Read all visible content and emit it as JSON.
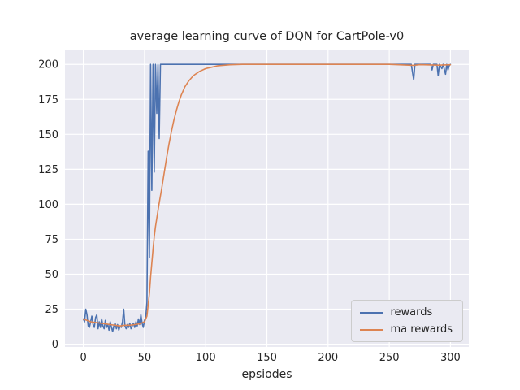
{
  "title": "average learning curve of DQN for CartPole-v0",
  "colors": {
    "figure_bg": "#ffffff",
    "axes_bg": "#eaeaf2",
    "grid": "#ffffff",
    "text": "#262626",
    "rewards_line": "#4c72b0",
    "ma_line": "#dd8452"
  },
  "chart_data": {
    "type": "line",
    "title": "average learning curve of DQN for CartPole-v0",
    "xlabel": "epsiodes",
    "ylabel": "",
    "xlim": [
      -15,
      315
    ],
    "ylim": [
      -2,
      210
    ],
    "x_ticks": [
      0,
      50,
      100,
      150,
      200,
      250,
      300
    ],
    "y_ticks": [
      0,
      25,
      50,
      75,
      100,
      125,
      150,
      175,
      200
    ],
    "grid": true,
    "legend_position": "lower right",
    "series": [
      {
        "name": "rewards",
        "color": "#4c72b0",
        "points": [
          [
            0,
            18
          ],
          [
            1,
            16
          ],
          [
            2,
            25
          ],
          [
            3,
            21
          ],
          [
            4,
            13
          ],
          [
            5,
            12
          ],
          [
            6,
            16
          ],
          [
            7,
            20
          ],
          [
            8,
            14
          ],
          [
            9,
            12
          ],
          [
            10,
            19
          ],
          [
            11,
            21
          ],
          [
            12,
            11
          ],
          [
            13,
            16
          ],
          [
            14,
            12
          ],
          [
            15,
            18
          ],
          [
            16,
            13
          ],
          [
            17,
            11
          ],
          [
            18,
            17
          ],
          [
            19,
            12
          ],
          [
            20,
            14
          ],
          [
            21,
            10
          ],
          [
            22,
            16
          ],
          [
            23,
            12
          ],
          [
            24,
            9
          ],
          [
            25,
            13
          ],
          [
            26,
            15
          ],
          [
            27,
            11
          ],
          [
            28,
            14
          ],
          [
            29,
            10
          ],
          [
            30,
            13
          ],
          [
            31,
            12
          ],
          [
            32,
            16
          ],
          [
            33,
            25
          ],
          [
            34,
            13
          ],
          [
            35,
            11
          ],
          [
            36,
            14
          ],
          [
            37,
            12
          ],
          [
            38,
            15
          ],
          [
            39,
            11
          ],
          [
            40,
            13
          ],
          [
            41,
            15
          ],
          [
            42,
            12
          ],
          [
            43,
            16
          ],
          [
            44,
            13
          ],
          [
            45,
            18
          ],
          [
            46,
            14
          ],
          [
            47,
            21
          ],
          [
            48,
            15
          ],
          [
            49,
            12
          ],
          [
            50,
            17
          ],
          [
            51,
            19
          ],
          [
            52,
            30
          ],
          [
            53,
            138
          ],
          [
            54,
            62
          ],
          [
            55,
            200
          ],
          [
            56,
            110
          ],
          [
            57,
            200
          ],
          [
            58,
            123
          ],
          [
            59,
            200
          ],
          [
            60,
            165
          ],
          [
            61,
            200
          ],
          [
            62,
            147
          ],
          [
            63,
            200
          ],
          [
            64,
            200
          ],
          [
            65,
            200
          ],
          [
            70,
            200
          ],
          [
            80,
            200
          ],
          [
            100,
            200
          ],
          [
            130,
            200
          ],
          [
            160,
            200
          ],
          [
            200,
            200
          ],
          [
            240,
            200
          ],
          [
            268,
            200
          ],
          [
            270,
            189
          ],
          [
            271,
            200
          ],
          [
            284,
            200
          ],
          [
            285,
            196
          ],
          [
            286,
            200
          ],
          [
            289,
            200
          ],
          [
            290,
            192
          ],
          [
            291,
            200
          ],
          [
            293,
            197
          ],
          [
            294,
            200
          ],
          [
            296,
            193
          ],
          [
            297,
            200
          ],
          [
            298,
            196
          ],
          [
            299,
            199
          ],
          [
            300,
            200
          ]
        ]
      },
      {
        "name": "ma rewards",
        "color": "#dd8452",
        "points": [
          [
            0,
            18
          ],
          [
            3,
            17
          ],
          [
            6,
            16
          ],
          [
            10,
            15.5
          ],
          [
            14,
            15
          ],
          [
            18,
            14.5
          ],
          [
            22,
            14
          ],
          [
            26,
            13.5
          ],
          [
            30,
            13
          ],
          [
            34,
            13.5
          ],
          [
            38,
            13.5
          ],
          [
            42,
            14
          ],
          [
            46,
            14.5
          ],
          [
            50,
            16
          ],
          [
            52,
            20
          ],
          [
            53,
            28
          ],
          [
            54,
            36
          ],
          [
            55,
            48
          ],
          [
            56,
            58
          ],
          [
            57,
            68
          ],
          [
            58,
            77
          ],
          [
            59,
            84
          ],
          [
            60,
            90
          ],
          [
            62,
            101
          ],
          [
            64,
            111
          ],
          [
            66,
            122
          ],
          [
            68,
            133
          ],
          [
            70,
            143
          ],
          [
            72,
            152
          ],
          [
            74,
            160
          ],
          [
            76,
            167
          ],
          [
            78,
            173
          ],
          [
            80,
            178
          ],
          [
            83,
            184
          ],
          [
            86,
            188
          ],
          [
            90,
            192
          ],
          [
            95,
            195
          ],
          [
            100,
            197
          ],
          [
            105,
            198
          ],
          [
            110,
            199
          ],
          [
            120,
            199.7
          ],
          [
            130,
            200
          ],
          [
            160,
            200
          ],
          [
            200,
            200
          ],
          [
            250,
            200
          ],
          [
            270,
            199.3
          ],
          [
            275,
            199.8
          ],
          [
            290,
            199.4
          ],
          [
            300,
            199.7
          ]
        ]
      }
    ]
  }
}
